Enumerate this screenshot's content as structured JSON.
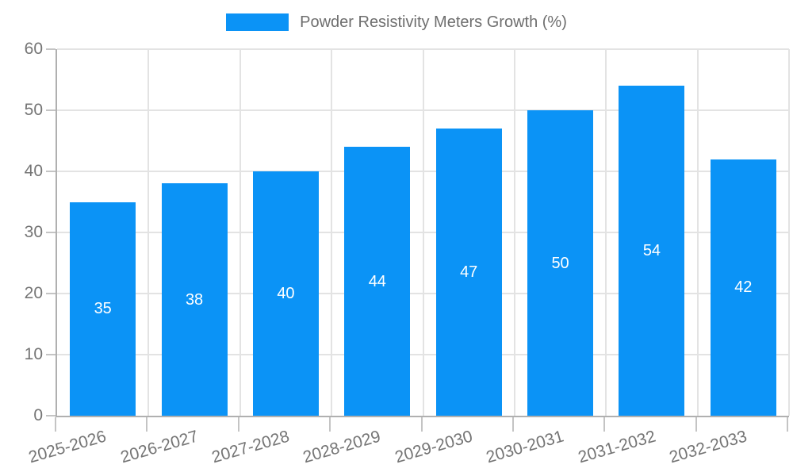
{
  "legend": {
    "label": "Powder Resistivity Meters Growth (%)",
    "position": "top"
  },
  "chart_data": {
    "type": "bar",
    "title": "Powder Resistivity Meters Growth (%)",
    "categories": [
      "2025-2026",
      "2026-2027",
      "2027-2028",
      "2028-2029",
      "2029-2030",
      "2030-2031",
      "2031-2032",
      "2032-2033"
    ],
    "series": [
      {
        "name": "Powder Resistivity Meters Growth (%)",
        "values": [
          35,
          38,
          40,
          44,
          47,
          50,
          54,
          42
        ]
      }
    ],
    "value_labels_shown": true,
    "xlabel": "",
    "ylabel": "",
    "ylim": [
      0,
      60
    ],
    "yticks": [
      0,
      10,
      20,
      30,
      40,
      50,
      60
    ],
    "grid": true,
    "legend_position": "top",
    "x_label_rotation_deg": -16
  },
  "colors": {
    "bar": "#0b93f6",
    "value_label": "#ffffff",
    "grid_line": "#e3e3e3",
    "axis_line": "#b0b0b0",
    "tick_mark": "#c4c4c4",
    "tick_text": "#757575",
    "legend_text": "#6e6e6e",
    "background": "#ffffff"
  }
}
